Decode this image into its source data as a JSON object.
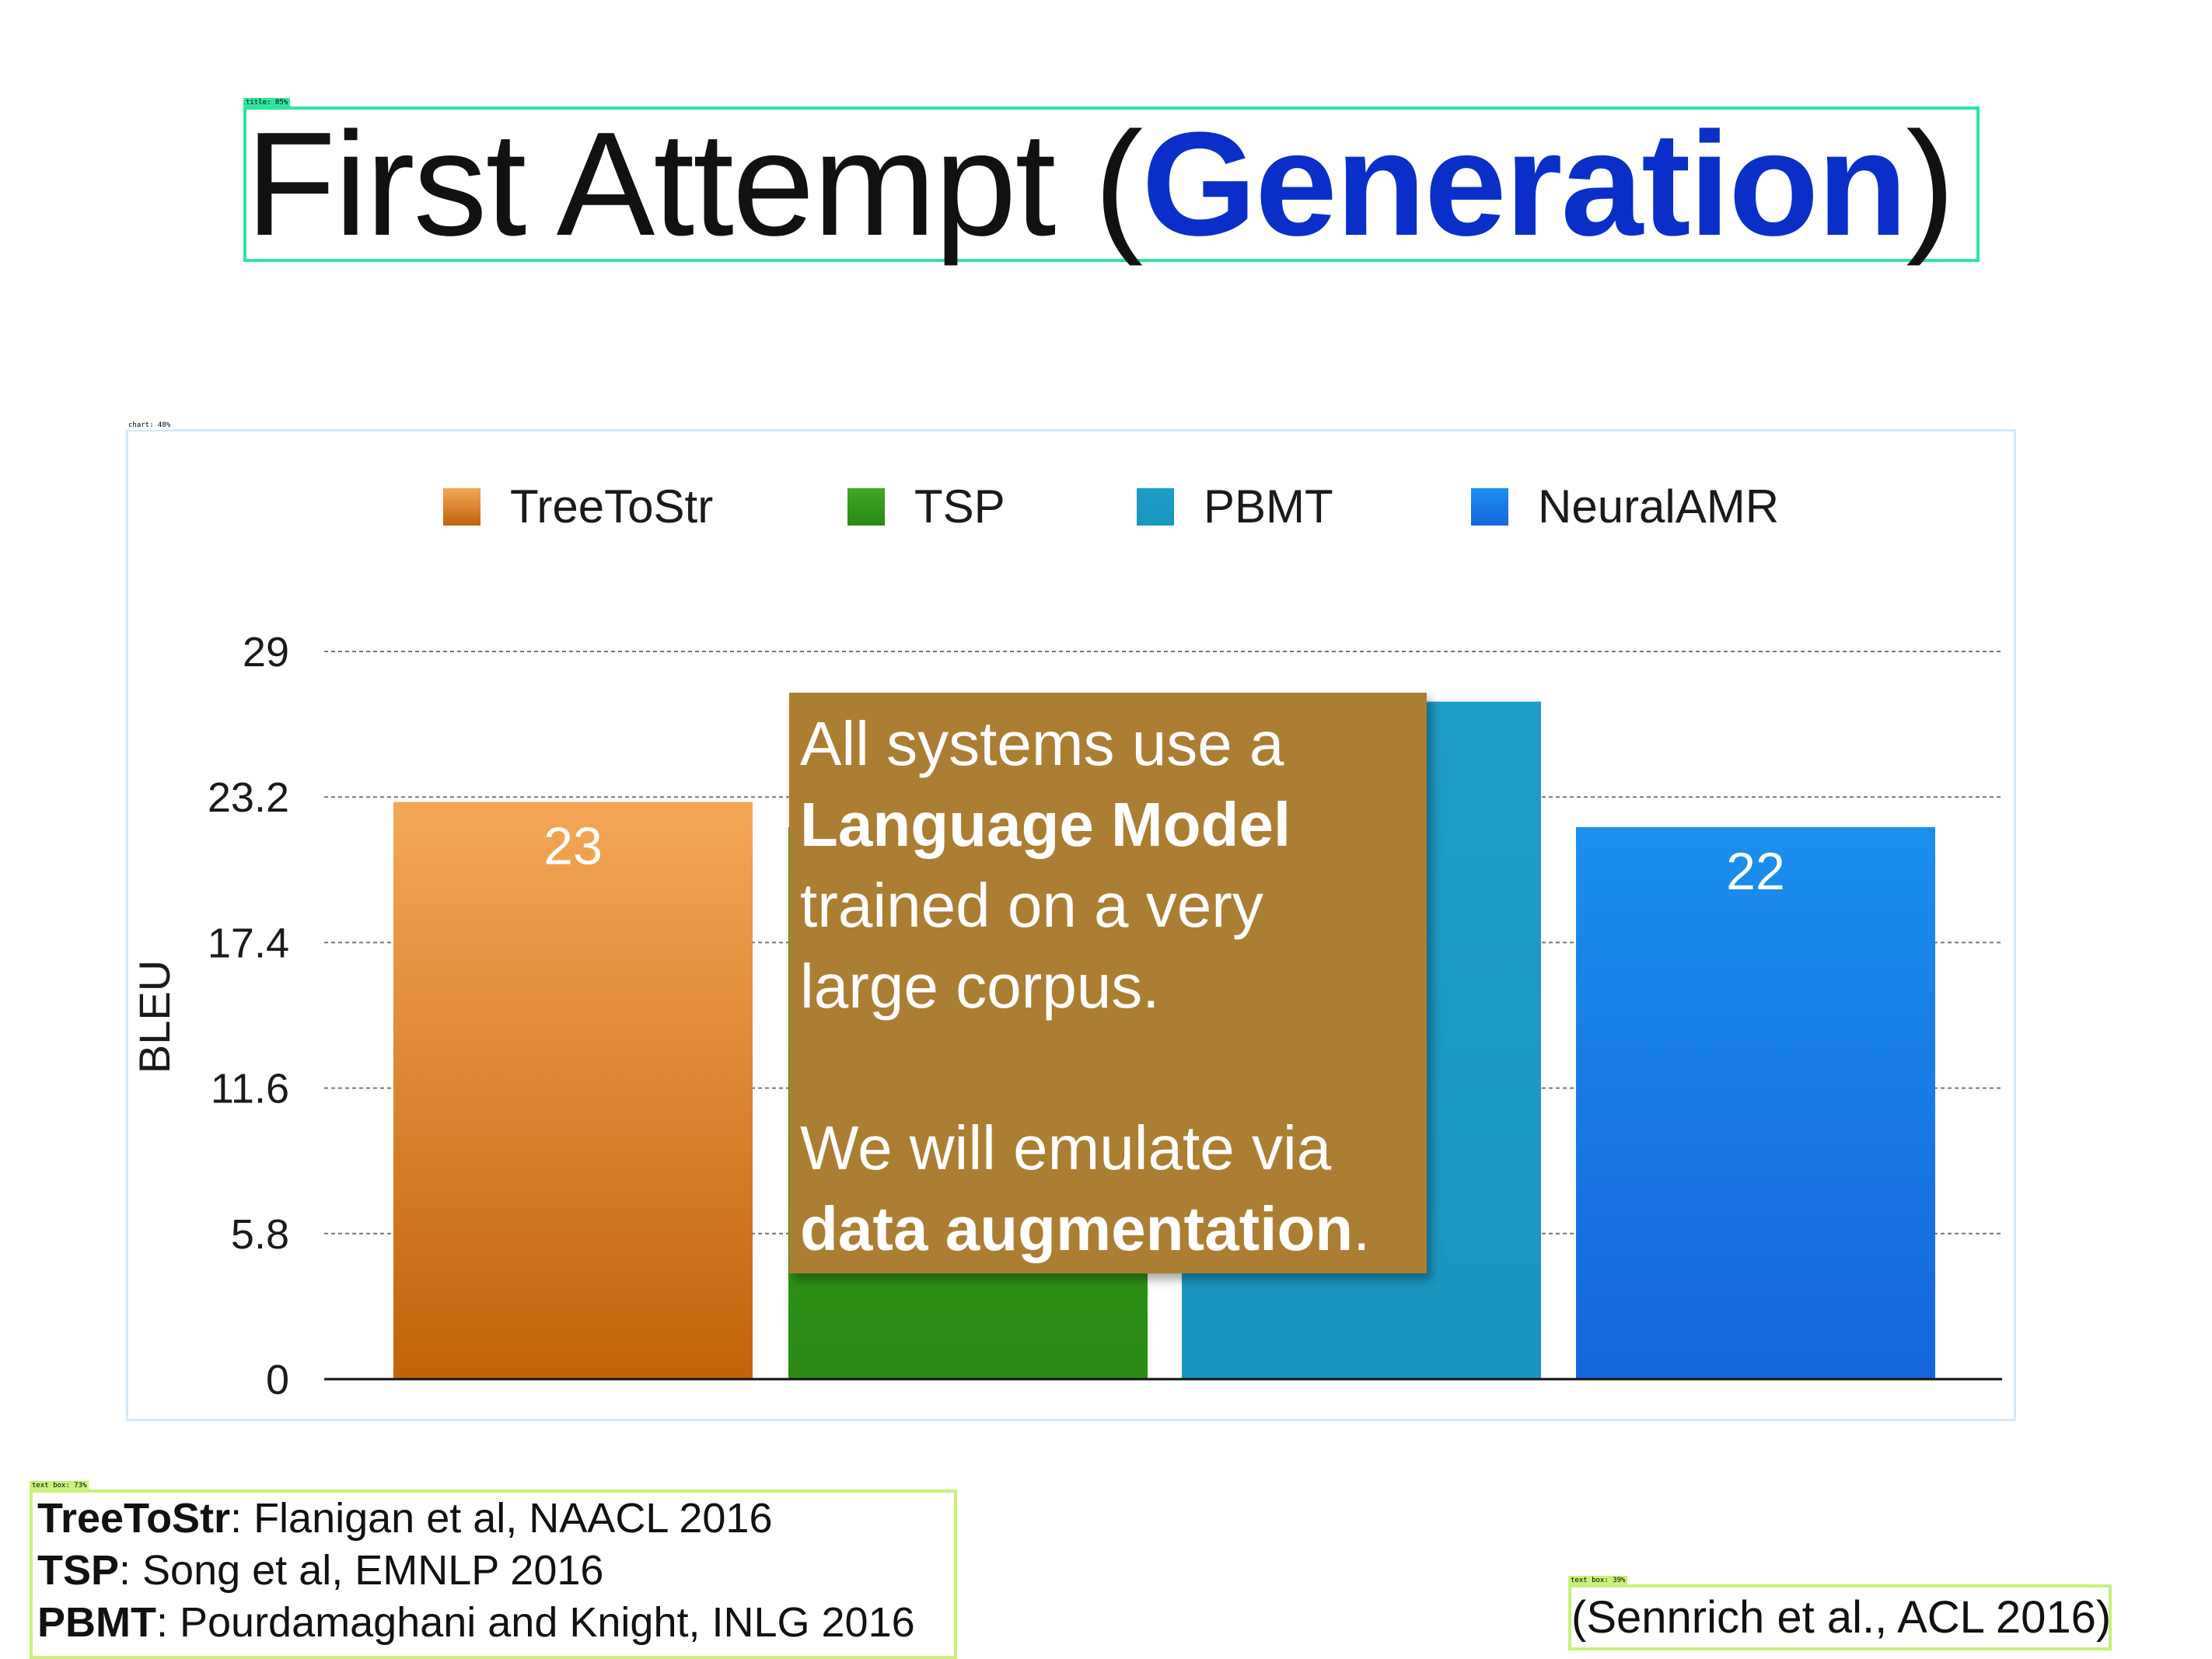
{
  "slide": {
    "title_prefix": "First Attempt (",
    "title_accent": "Generation",
    "title_suffix": ")",
    "accent_color": "#0a2fc8"
  },
  "detections": {
    "title_tag": "title: 85%",
    "chart_tag": "chart: 48%",
    "refs_tag": "text box: 73%",
    "cite_tag": "text box: 39%"
  },
  "chart_data": {
    "type": "bar",
    "categories": [
      "TreeToStr",
      "TSP",
      "PBMT",
      "NeuralAMR"
    ],
    "values": [
      23,
      22,
      27,
      22
    ],
    "value_labels": [
      "23",
      "",
      "",
      "22"
    ],
    "series": [
      {
        "name": "TreeToStr",
        "color": "#d2711a"
      },
      {
        "name": "TSP",
        "color": "#2f9316"
      },
      {
        "name": "PBMT",
        "color": "#1b9bc6"
      },
      {
        "name": "NeuralAMR",
        "color": "#1576e6"
      }
    ],
    "ylabel": "BLEU",
    "yticks": [
      "0",
      "5.8",
      "11.6",
      "17.4",
      "23.2",
      "29"
    ],
    "ylim": [
      0,
      29
    ],
    "grid": true,
    "legend_position": "top"
  },
  "note": {
    "line1": "All systems use a",
    "line2": "Language Model",
    "line3": "trained on a very",
    "line4": "large corpus.",
    "line5": "We will emulate via",
    "line6_bold": "data augmentation",
    "line6_tail": "."
  },
  "references": [
    {
      "system": "TreeToStr",
      "rest": ": Flanigan et al, NAACL 2016"
    },
    {
      "system": "TSP",
      "rest": ": Song et al, EMNLP 2016"
    },
    {
      "system": "PBMT",
      "rest": ": Pourdamaghani and Knight, INLG 2016"
    }
  ],
  "citation": "(Sennrich et al., ACL 2016)"
}
